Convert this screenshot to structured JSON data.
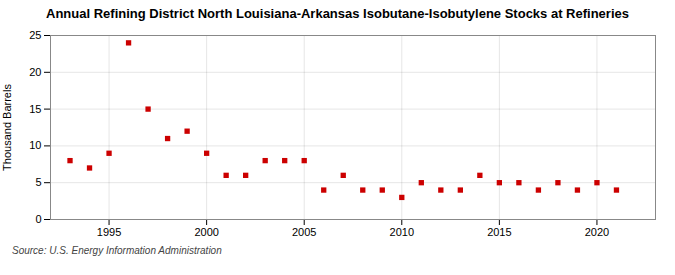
{
  "chart_data": {
    "type": "scatter",
    "title": "Annual Refining District North Louisiana-Arkansas Isobutane-Isobutylene Stocks at Refineries",
    "ylabel": "Thousand Barrels",
    "source": "Source: U.S. Energy Information Administration",
    "x": [
      1993,
      1994,
      1995,
      1996,
      1997,
      1998,
      1999,
      2000,
      2001,
      2002,
      2003,
      2004,
      2005,
      2006,
      2007,
      2008,
      2009,
      2010,
      2011,
      2012,
      2013,
      2014,
      2015,
      2016,
      2017,
      2018,
      2019,
      2020,
      2021
    ],
    "values": [
      8,
      7,
      9,
      24,
      15,
      11,
      12,
      9,
      6,
      6,
      8,
      8,
      8,
      4,
      6,
      4,
      4,
      3,
      5,
      4,
      4,
      6,
      5,
      5,
      4,
      5,
      4,
      5,
      4
    ],
    "color": "#cc0000",
    "marker": "square",
    "xlim": [
      1992,
      2023
    ],
    "ylim": [
      0,
      25
    ],
    "xticks": [
      1995,
      2000,
      2005,
      2010,
      2015,
      2020
    ],
    "yticks": [
      0,
      5,
      10,
      15,
      20,
      25
    ],
    "grid": true
  }
}
